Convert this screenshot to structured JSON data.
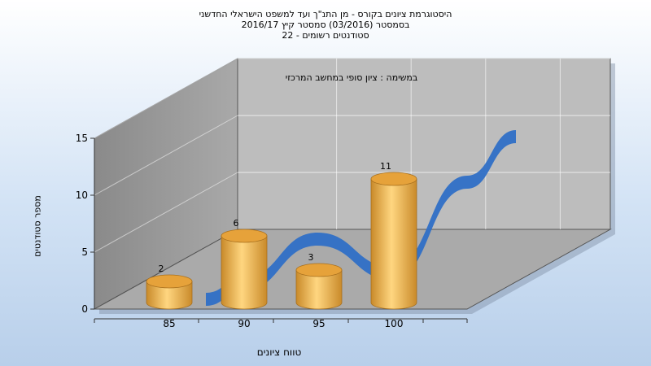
{
  "chart_data": {
    "type": "bar",
    "title_lines": [
      "היסטוגרמת ציונים בקורס - מן התנ\"ך ועד למשפט הישראלי החדשני",
      "בסמסטר (03/2016) סמסטר קיץ 2016/17",
      "סטודנטים רשומים - 22"
    ],
    "subtitle": "במשימה : ציון סופי במחשב המרכזי",
    "xlabel": "טווח ציונים",
    "ylabel": "מספר סטודנטים",
    "categories": [
      "85",
      "90",
      "95",
      "100"
    ],
    "values": [
      2,
      6,
      3,
      11
    ],
    "ylim": [
      0,
      15
    ],
    "yticks": [
      0,
      5,
      10,
      15
    ],
    "grid": true,
    "curve": {
      "type": "area-3d",
      "color": "#2f6fc6"
    },
    "colors": {
      "bar": "#e6a23a",
      "bar_light": "#ffd680",
      "wall_back": "#bdbdbd",
      "wall_side": "#9c9c9c",
      "floor": "#aaaaaa"
    }
  }
}
